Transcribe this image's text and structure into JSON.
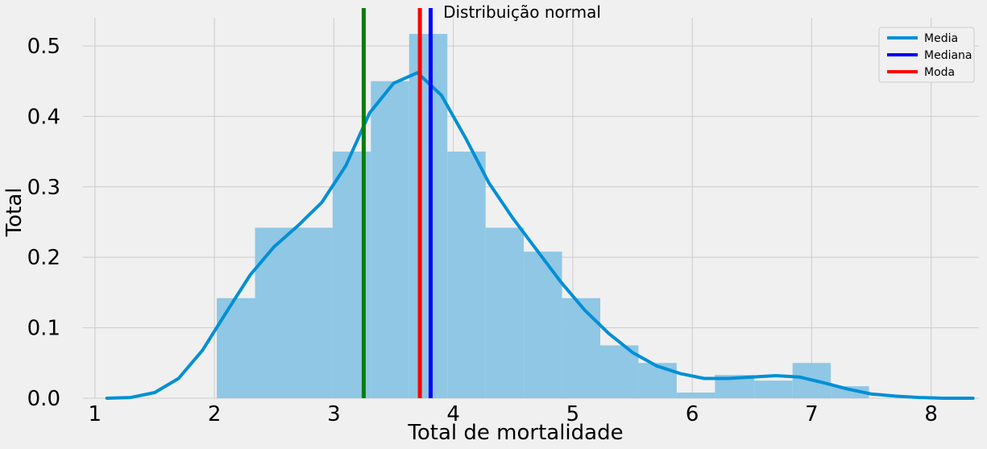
{
  "chart_data": {
    "type": "bar",
    "title": "Distribuição normal",
    "xlabel": "Total de mortalidade",
    "ylabel": "Total",
    "xlim": [
      0.9,
      8.4
    ],
    "ylim": [
      0,
      0.54
    ],
    "xticks": [
      1,
      2,
      3,
      4,
      5,
      6,
      7,
      8
    ],
    "yticks": [
      0.0,
      0.1,
      0.2,
      0.3,
      0.4,
      0.5
    ],
    "ytick_labels": [
      "0.0",
      "0.1",
      "0.2",
      "0.3",
      "0.4",
      "0.5"
    ],
    "grid": true,
    "legend_position": "top-right",
    "histogram": {
      "bin_edges": [
        2.02,
        2.34,
        2.66,
        2.99,
        3.31,
        3.63,
        3.95,
        4.27,
        4.59,
        4.91,
        5.23,
        5.55,
        5.87,
        6.19,
        6.52,
        6.84,
        7.16,
        7.48
      ],
      "values": [
        0.142,
        0.242,
        0.242,
        0.35,
        0.45,
        0.517,
        0.35,
        0.242,
        0.208,
        0.142,
        0.075,
        0.05,
        0.008,
        0.033,
        0.025,
        0.05,
        0.017
      ],
      "color": "#8fc7e5"
    },
    "kde": {
      "name": "Media",
      "color": "#008fd5",
      "x": [
        1.1,
        1.3,
        1.5,
        1.7,
        1.9,
        2.1,
        2.3,
        2.5,
        2.7,
        2.9,
        3.1,
        3.3,
        3.5,
        3.7,
        3.9,
        4.1,
        4.3,
        4.5,
        4.7,
        4.9,
        5.1,
        5.3,
        5.5,
        5.7,
        5.9,
        6.1,
        6.3,
        6.5,
        6.7,
        6.9,
        7.1,
        7.3,
        7.5,
        7.7,
        7.9,
        8.1,
        8.35
      ],
      "y": [
        0.0,
        0.001,
        0.008,
        0.028,
        0.068,
        0.122,
        0.175,
        0.215,
        0.245,
        0.278,
        0.33,
        0.405,
        0.447,
        0.462,
        0.43,
        0.37,
        0.305,
        0.255,
        0.21,
        0.165,
        0.125,
        0.092,
        0.065,
        0.046,
        0.035,
        0.028,
        0.028,
        0.03,
        0.032,
        0.03,
        0.022,
        0.013,
        0.006,
        0.003,
        0.001,
        0.0,
        0.0
      ]
    },
    "vlines": [
      {
        "name": "Mediana",
        "x": 3.81,
        "color": "#0000ff"
      },
      {
        "name": "Moda",
        "x": 3.72,
        "color": "#ff0000"
      },
      {
        "name": "",
        "x": 3.25,
        "color": "#008000"
      }
    ],
    "legend": [
      {
        "label": "Media",
        "color": "#008fd5"
      },
      {
        "label": "Mediana",
        "color": "#0000ff"
      },
      {
        "label": "Moda",
        "color": "#ff0000"
      }
    ]
  }
}
